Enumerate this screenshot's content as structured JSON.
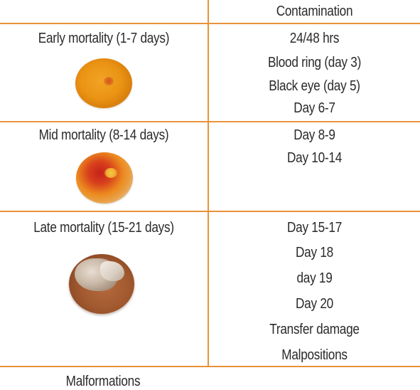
{
  "header": {
    "contamination": "Contamination"
  },
  "rows": [
    {
      "stage": "Early mortality (1-7 days)",
      "image_icon": "early-embryo-egg-photo",
      "periods": [
        "24/48 hrs",
        "Blood ring (day 3)",
        "Black eye (day 5)",
        "Day 6-7"
      ]
    },
    {
      "stage": "Mid mortality (8-14 days)",
      "image_icon": "mid-embryo-egg-photo",
      "periods": [
        "Day 8-9",
        "Day 10-14"
      ]
    },
    {
      "stage": "Late mortality (15-21 days)",
      "image_icon": "late-embryo-egg-photo",
      "periods": [
        "Day 15-17",
        "Day 18",
        "day 19",
        "Day 20",
        "Transfer damage",
        "Malpositions"
      ]
    }
  ],
  "footer": {
    "malformations": "Malformations"
  },
  "colors": {
    "border": "#e8923a",
    "text": "#2a2a2a"
  }
}
